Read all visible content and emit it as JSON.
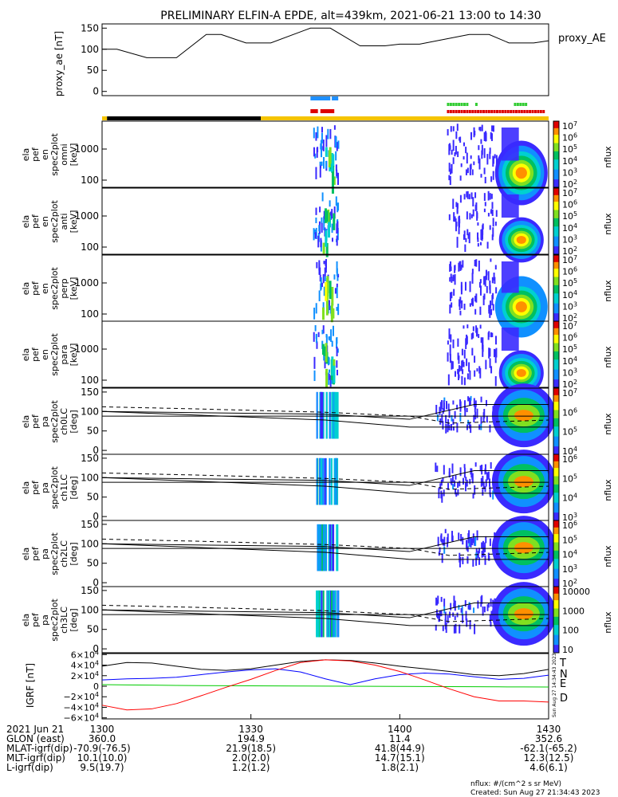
{
  "title": "PRELIMINARY ELFIN-A EPDE, alt=439km, 2021-06-21 13:00 to 14:30",
  "top_panel": {
    "ylabel": "proxy_ae [nT]",
    "legend": "proxy_AE",
    "yticks": [
      "150",
      "100",
      "50",
      "0"
    ],
    "chart_data": {
      "type": "line",
      "xunit": "minutes after 13:00",
      "ylim": [
        -10,
        160
      ],
      "x": [
        0,
        3,
        9,
        15,
        21,
        24,
        29,
        34,
        42,
        46,
        52,
        57,
        60,
        64,
        74,
        78,
        82,
        87,
        90
      ],
      "y": [
        100,
        100,
        80,
        80,
        135,
        135,
        115,
        115,
        150,
        150,
        108,
        108,
        112,
        112,
        135,
        135,
        115,
        115,
        120
      ]
    }
  },
  "flag_bars": {
    "blue": {
      "color": "#1e90ff",
      "segments": [
        [
          42.0,
          46.0
        ],
        [
          46.3,
          47.6
        ]
      ]
    },
    "green_dash": {
      "color": "#33cc33",
      "segments": [
        [
          69.5,
          73.5
        ],
        [
          75.2,
          75.6
        ],
        [
          83.0,
          85.2
        ]
      ]
    },
    "red_solid": {
      "color": "#dd0000",
      "segments": [
        [
          42.0,
          43.5
        ],
        [
          44.0,
          46.8
        ]
      ]
    },
    "red_dash": {
      "color": "#dd0000",
      "segments": [
        [
          69.5,
          89.2
        ]
      ]
    },
    "status": [
      {
        "color": "#f5c400",
        "segments": [
          [
            0,
            1
          ]
        ]
      },
      {
        "color": "#000000",
        "segments": [
          [
            1,
            32
          ]
        ]
      },
      {
        "color": "#f5c400",
        "segments": [
          [
            32,
            90
          ]
        ]
      }
    ]
  },
  "spec_panels": [
    {
      "label": [
        "ela",
        "pef",
        "en",
        "spec2plot",
        "omni",
        "[keV]"
      ],
      "yticks": [
        "1000",
        "100"
      ]
    },
    {
      "label": [
        "ela",
        "pef",
        "en",
        "spec2plot",
        "anti",
        "[keV]"
      ],
      "yticks": [
        "1000",
        "100"
      ]
    },
    {
      "label": [
        "ela",
        "pef",
        "en",
        "spec2plot",
        "perp",
        "[keV]"
      ],
      "yticks": [
        "1000",
        "100"
      ]
    },
    {
      "label": [
        "ela",
        "pef",
        "en",
        "spec2plot",
        "para",
        "[keV]"
      ],
      "yticks": [
        "1000",
        "100"
      ]
    }
  ],
  "pa_panels": [
    {
      "label": [
        "ela",
        "pef",
        "pa",
        "spec2plot",
        "ch0LC",
        "[deg]"
      ],
      "yticks": [
        "150",
        "100",
        "50",
        "0"
      ]
    },
    {
      "label": [
        "ela",
        "pef",
        "pa",
        "spec2plot",
        "ch1LC",
        "[deg]"
      ],
      "yticks": [
        "150",
        "100",
        "50",
        "0"
      ]
    },
    {
      "label": [
        "ela",
        "pef",
        "pa",
        "spec2plot",
        "ch2LC",
        "[deg]"
      ],
      "yticks": [
        "150",
        "100",
        "50",
        "0"
      ]
    },
    {
      "label": [
        "ela",
        "pef",
        "pa",
        "spec2plot",
        "ch3LC",
        "[deg]"
      ],
      "yticks": [
        "150",
        "100",
        "50",
        "0"
      ]
    }
  ],
  "colorbars": [
    {
      "ticks": [
        "10^7",
        "10^6",
        "10^5",
        "10^4",
        "10^3",
        "10^2"
      ],
      "unit": "nflux"
    },
    {
      "ticks": [
        "10^7",
        "10^6",
        "10^5",
        "10^4",
        "10^3",
        "10^2"
      ],
      "unit": "nflux"
    },
    {
      "ticks": [
        "10^7",
        "10^6",
        "10^5",
        "10^4",
        "10^3",
        "10^2"
      ],
      "unit": "nflux"
    },
    {
      "ticks": [
        "10^7",
        "10^6",
        "10^5",
        "10^4",
        "10^3",
        "10^2"
      ],
      "unit": "nflux"
    },
    {
      "ticks": [
        "10^7",
        "10^6",
        "10^5",
        "10^4"
      ],
      "unit": "nflux"
    },
    {
      "ticks": [
        "10^6",
        "10^5",
        "10^4",
        "10^3"
      ],
      "unit": "nflux"
    },
    {
      "ticks": [
        "10^6",
        "10^5",
        "10^4",
        "10^3",
        "10^2"
      ],
      "unit": "nflux"
    },
    {
      "ticks": [
        "10000",
        "1000",
        "100",
        "10"
      ],
      "unit": "nflux"
    }
  ],
  "pa_lines": {
    "solid_descending": {
      "x": [
        0,
        45,
        62,
        90
      ],
      "y": [
        100,
        78,
        60,
        60
      ]
    },
    "solid_ascending": {
      "x": [
        0,
        45,
        62,
        75,
        90
      ],
      "y": [
        100,
        93,
        80,
        118,
        118
      ]
    },
    "dashed": {
      "x": [
        0,
        18,
        45,
        62,
        70,
        90
      ],
      "y": [
        112,
        107,
        98,
        88,
        70,
        78
      ]
    },
    "horizontal": {
      "y": 88
    }
  },
  "igrf_panel": {
    "ylabel": "IGRF [nT]",
    "yticks": [
      "6×10^4",
      "4×10^4",
      "2×10^4",
      "0",
      "−2×10^4",
      "−4×10^4",
      "−6×10^4"
    ],
    "legend": [
      {
        "name": "T",
        "color": "#000000"
      },
      {
        "name": "N",
        "color": "#0000ff"
      },
      {
        "name": "E",
        "color": "#00cc00"
      },
      {
        "name": "D",
        "color": "#ff0000"
      }
    ],
    "chart_data": {
      "type": "line",
      "xunit": "minutes after 13:00",
      "ylim": [
        -62000,
        62000
      ],
      "x": [
        0,
        5,
        10,
        15,
        20,
        25,
        30,
        35,
        40,
        45,
        50,
        55,
        60,
        65,
        70,
        75,
        80,
        85,
        90
      ],
      "series": [
        {
          "name": "T",
          "color": "#000000",
          "values": [
            38000,
            45000,
            44000,
            38000,
            32000,
            30000,
            33000,
            40000,
            47000,
            50000,
            49000,
            44000,
            38000,
            33000,
            28000,
            22000,
            20000,
            24000,
            32000
          ]
        },
        {
          "name": "N",
          "color": "#0000ff",
          "values": [
            12000,
            14000,
            15000,
            17000,
            22000,
            27000,
            31000,
            33000,
            27000,
            14000,
            3000,
            14000,
            22000,
            25000,
            23000,
            18000,
            13000,
            15000,
            21000
          ]
        },
        {
          "name": "E",
          "color": "#00cc00",
          "values": [
            3000,
            2500,
            2000,
            1500,
            1200,
            1000,
            800,
            600,
            400,
            200,
            0,
            -200,
            -400,
            -600,
            -800,
            -1000,
            -1200,
            -1400,
            -1500
          ]
        },
        {
          "name": "D",
          "color": "#ff0000",
          "values": [
            -36000,
            -45000,
            -43000,
            -33000,
            -18000,
            -2000,
            13000,
            30000,
            45000,
            50000,
            48000,
            40000,
            28000,
            12000,
            -5000,
            -20000,
            -28000,
            -28000,
            -30000
          ]
        }
      ]
    }
  },
  "creation_side": "Sun Aug 27 14:34:43 2023",
  "time_table": {
    "header": "2021 Jun 21",
    "ticks": [
      "1300",
      "1330",
      "1400",
      "1430"
    ],
    "rows": [
      {
        "label": "GLON (east)",
        "values": [
          "360.0",
          "194.9",
          "11.4",
          "352.6"
        ]
      },
      {
        "label": "MLAT-igrf(dip)",
        "values": [
          "-70.9(-76.5)",
          "21.9(18.5)",
          "41.8(44.9)",
          "-62.1(-65.2)"
        ]
      },
      {
        "label": "MLT-igrf(dip)",
        "values": [
          "10.1(10.0)",
          "2.0(2.0)",
          "14.7(15.1)",
          "12.3(12.5)"
        ]
      },
      {
        "label": "L-igrf(dip)",
        "values": [
          "9.5(19.7)",
          "1.2(1.2)",
          "1.8(2.1)",
          "4.6(6.1)"
        ]
      }
    ]
  },
  "footer": {
    "units": "nflux: #/(cm^2 s sr MeV)",
    "created": "Created: Sun Aug 27 21:34:43 2023"
  }
}
